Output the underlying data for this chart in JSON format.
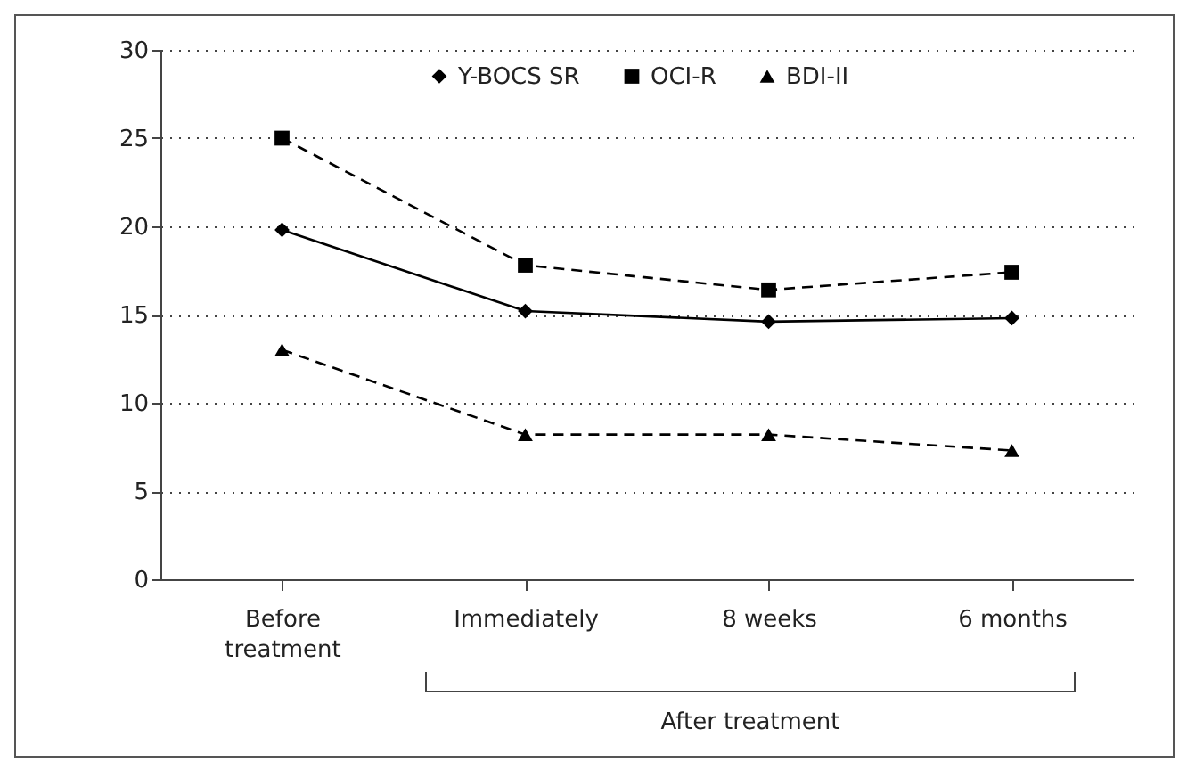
{
  "chart_data": {
    "type": "line",
    "categories": [
      "Before treatment",
      "Immediately",
      "8 weeks",
      "6 months"
    ],
    "series": [
      {
        "name": "Y-BOCS SR",
        "color": "#000000",
        "marker": "diamond",
        "line_style": "solid",
        "values": [
          19.8,
          15.2,
          14.6,
          14.8
        ]
      },
      {
        "name": "OCI-R",
        "color": "#000000",
        "marker": "square",
        "line_style": "dashed",
        "values": [
          25,
          17.8,
          16.4,
          17.4
        ]
      },
      {
        "name": "BDI-II",
        "color": "#000000",
        "marker": "triangle",
        "line_style": "dashed",
        "values": [
          13,
          8.2,
          8.2,
          7.3
        ]
      }
    ],
    "ylim": [
      0,
      30
    ],
    "yticks": [
      0,
      5,
      10,
      15,
      20,
      25,
      30
    ],
    "grid": "y",
    "legend": "top",
    "annotations": [
      "After treatment"
    ]
  }
}
